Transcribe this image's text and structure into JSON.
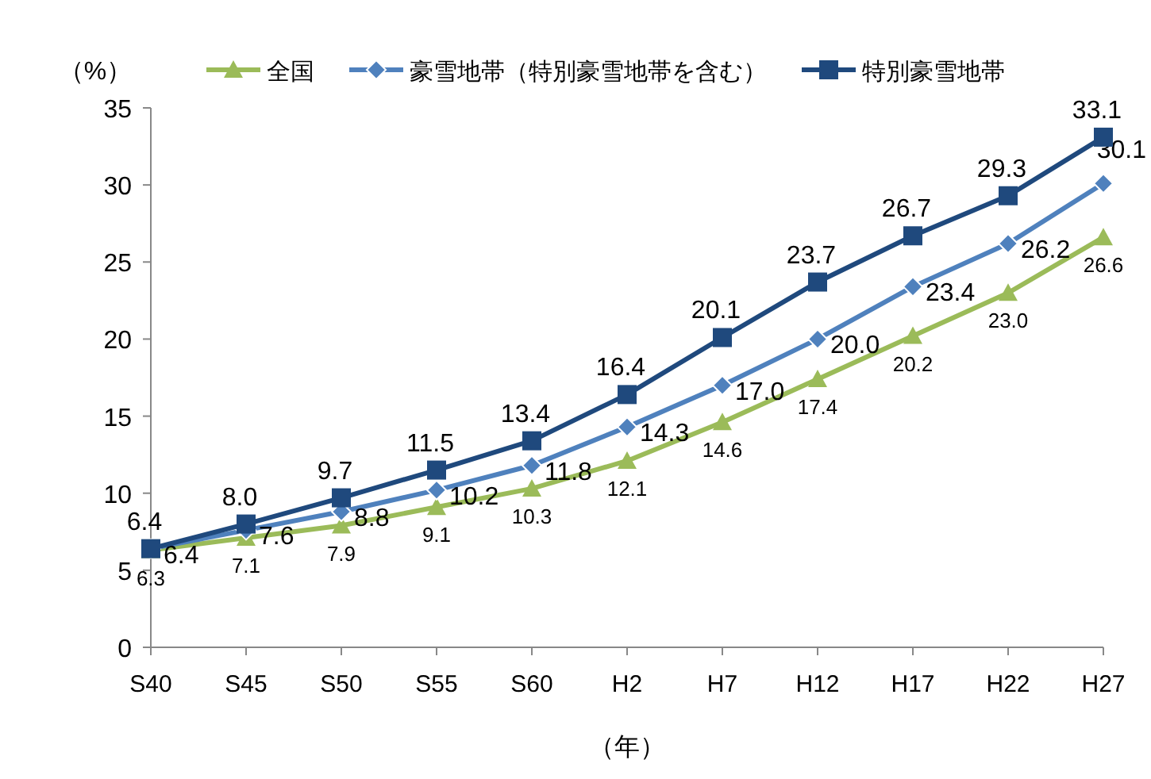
{
  "chart_data": {
    "type": "line",
    "ylabel": "（%）",
    "xlabel": "（年）",
    "categories": [
      "S40",
      "S45",
      "S50",
      "S55",
      "S60",
      "H2",
      "H7",
      "H12",
      "H17",
      "H22",
      "H27"
    ],
    "ylim": [
      0,
      35
    ],
    "yticks": [
      0,
      5,
      10,
      15,
      20,
      25,
      30,
      35
    ],
    "grid": false,
    "legend": "top",
    "series": [
      {
        "name": "全国",
        "color": "#9bbb59",
        "marker": "triangle",
        "values": [
          6.3,
          7.1,
          7.9,
          9.1,
          10.3,
          12.1,
          14.6,
          17.4,
          20.2,
          23.0,
          26.6
        ],
        "value_labels": [
          "6.3",
          "7.1",
          "7.9",
          "9.1",
          "10.3",
          "12.1",
          "14.6",
          "17.4",
          "20.2",
          "23.0",
          "26.6"
        ]
      },
      {
        "name": "豪雪地帯（特別豪雪地帯を含む）",
        "color": "#4f81bd",
        "marker": "diamond",
        "values": [
          6.4,
          7.6,
          8.8,
          10.2,
          11.8,
          14.3,
          17.0,
          20.0,
          23.4,
          26.2,
          30.1
        ],
        "value_labels": [
          "6.4",
          "7.6",
          "8.8",
          "10.2",
          "11.8",
          "14.3",
          "17.0",
          "20.0",
          "23.4",
          "26.2",
          "30.1"
        ]
      },
      {
        "name": "特別豪雪地帯",
        "color": "#1f497d",
        "marker": "square",
        "values": [
          6.4,
          8.0,
          9.7,
          11.5,
          13.4,
          16.4,
          20.1,
          23.7,
          26.7,
          29.3,
          33.1
        ],
        "value_labels": [
          "6.4",
          "8.0",
          "9.7",
          "11.5",
          "13.4",
          "16.4",
          "20.1",
          "23.7",
          "26.7",
          "29.3",
          "33.1"
        ]
      }
    ]
  }
}
